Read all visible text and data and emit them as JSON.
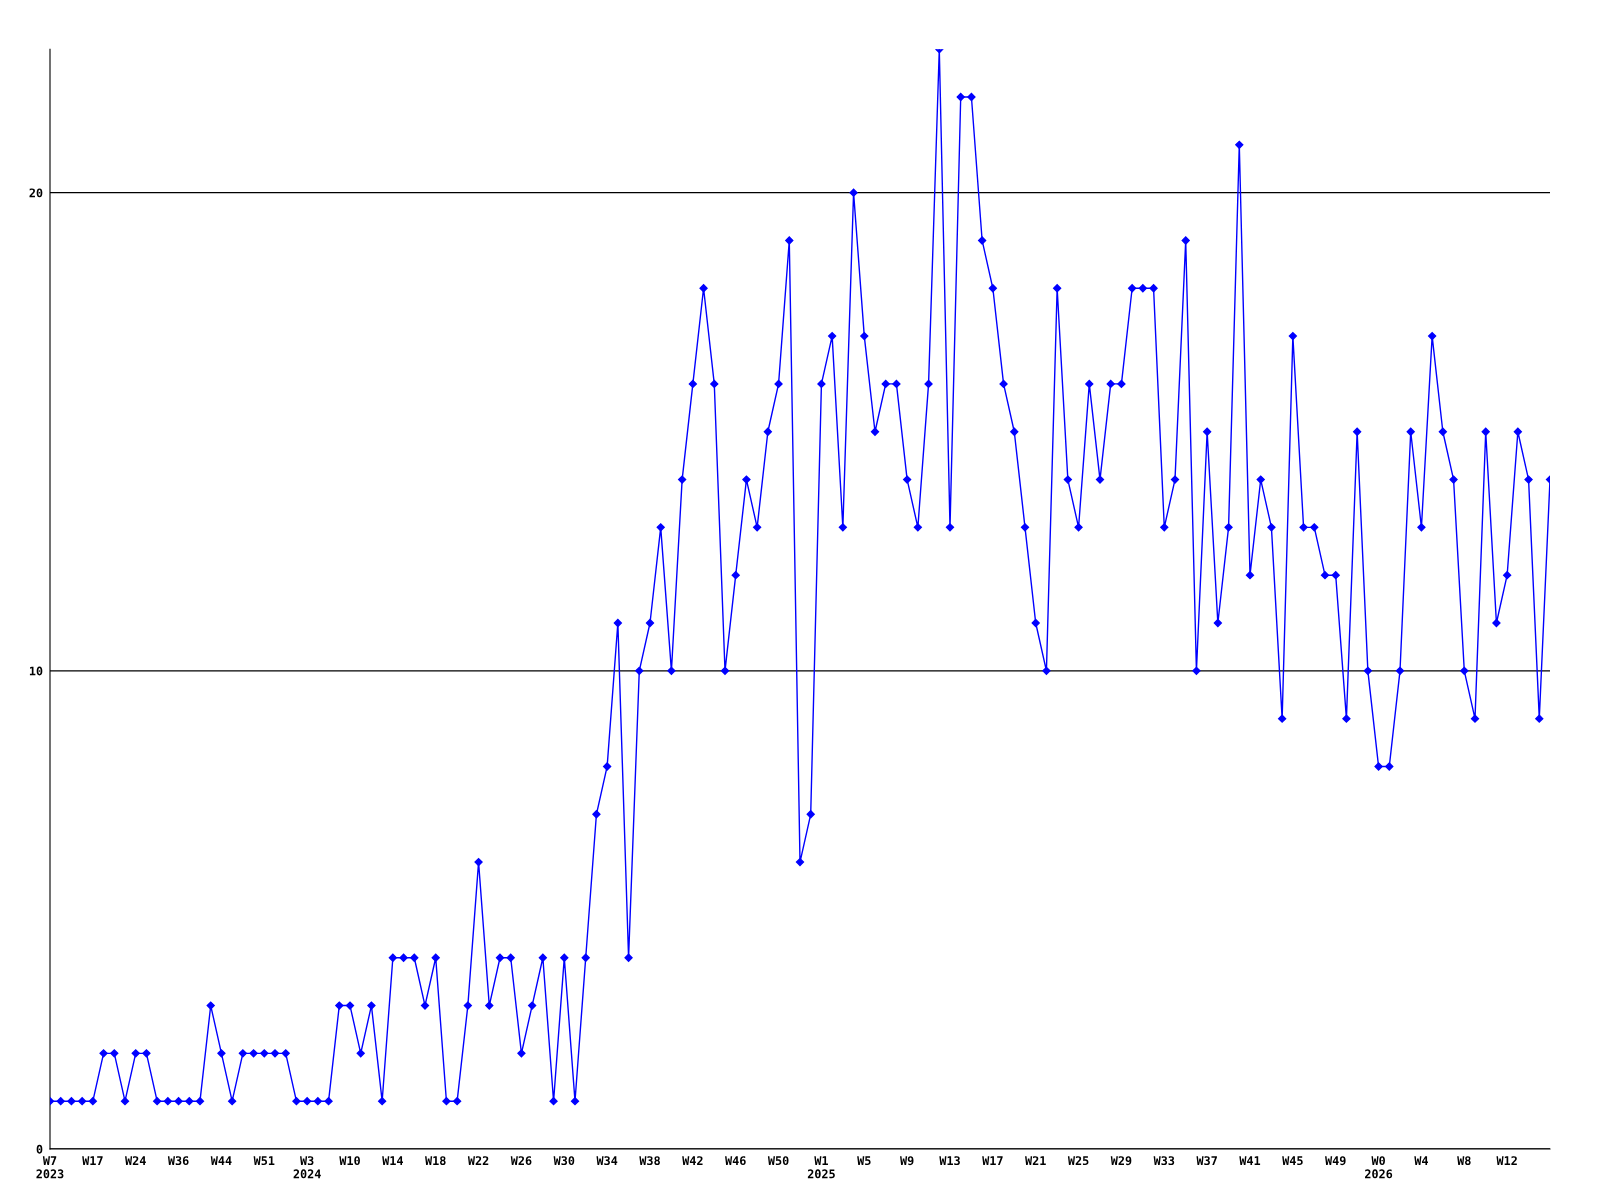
{
  "chart_data": {
    "type": "line",
    "categories": [
      "W7\n2023",
      null,
      null,
      null,
      "W17",
      null,
      null,
      null,
      "W24",
      null,
      null,
      null,
      "W36",
      null,
      null,
      null,
      "W44",
      null,
      null,
      null,
      "W51",
      null,
      null,
      null,
      "W3\n2024",
      null,
      null,
      null,
      "W10",
      null,
      null,
      null,
      "W14",
      null,
      null,
      null,
      "W18",
      null,
      null,
      null,
      "W22",
      null,
      null,
      null,
      "W26",
      null,
      null,
      null,
      "W30",
      null,
      null,
      null,
      "W34",
      null,
      null,
      null,
      "W38",
      null,
      null,
      null,
      "W42",
      null,
      null,
      null,
      "W46",
      null,
      null,
      null,
      "W50",
      null,
      null,
      null,
      "W1\n2025",
      null,
      null,
      null,
      "W5",
      null,
      null,
      null,
      "W9",
      null,
      null,
      null,
      "W13",
      null,
      null,
      null,
      "W17",
      null,
      null,
      null,
      "W21",
      null,
      null,
      null,
      "W25",
      null,
      null,
      null,
      "W29",
      null,
      null,
      null,
      "W33",
      null,
      null,
      null,
      "W37",
      null,
      null,
      null,
      "W41",
      null,
      null,
      null,
      "W45",
      null,
      null,
      null,
      "W49",
      null,
      null,
      null,
      "W0\n2026",
      null,
      null,
      null,
      "W4",
      null,
      null,
      null,
      "W8",
      null,
      null,
      null,
      "W12",
      null,
      null,
      null,
      null
    ],
    "series": [
      {
        "color": "#0000ff",
        "values": [
          1,
          1,
          1,
          1,
          1,
          2,
          2,
          1,
          2,
          2,
          1,
          1,
          1,
          1,
          1,
          3,
          2,
          1,
          2,
          2,
          2,
          2,
          2,
          1,
          1,
          1,
          1,
          3,
          3,
          2,
          3,
          1,
          4,
          4,
          4,
          3,
          4,
          1,
          1,
          3,
          6,
          3,
          4,
          4,
          2,
          3,
          4,
          1,
          4,
          1,
          4,
          7,
          8,
          11,
          4,
          10,
          11,
          13,
          10,
          14,
          16,
          18,
          16,
          10,
          12,
          14,
          13,
          15,
          16,
          19,
          6,
          7,
          16,
          17,
          13,
          20,
          17,
          15,
          16,
          16,
          14,
          13,
          16,
          23,
          13,
          22,
          22,
          19,
          18,
          16,
          15,
          13,
          11,
          10,
          18,
          14,
          13,
          16,
          14,
          16,
          16,
          18,
          18,
          18,
          13,
          14,
          19,
          10,
          15,
          11,
          13,
          21,
          12,
          14,
          13,
          9,
          17,
          13,
          13,
          12,
          12,
          9,
          15,
          10,
          8,
          8,
          10,
          15,
          13,
          17,
          15,
          14,
          10,
          9,
          15,
          11,
          12,
          15,
          14,
          9,
          14
        ]
      }
    ],
    "ylim": [
      0,
      23
    ],
    "yticks": [
      0,
      10,
      20
    ],
    "grid": "y",
    "marker": "diamond",
    "line_style": "solid",
    "legend": false
  }
}
